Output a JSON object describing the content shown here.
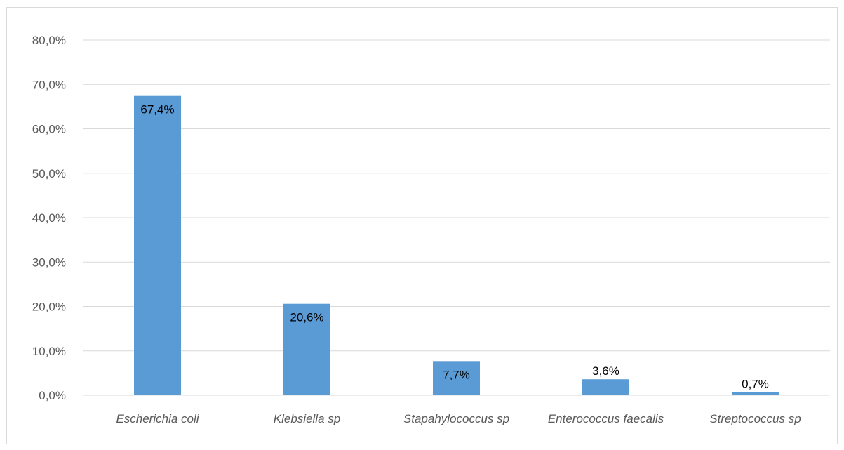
{
  "chart_data": {
    "type": "bar",
    "categories": [
      "Escherichia coli",
      "Klebsiella sp",
      "Stapahylococcus sp",
      "Enterococcus faecalis",
      "Streptococcus sp"
    ],
    "values": [
      67.4,
      20.6,
      7.7,
      3.6,
      0.7
    ],
    "data_labels": [
      "67,4%",
      "20,6%",
      "7,7%",
      "3,6%",
      "0,7%"
    ],
    "y_ticks": [
      0,
      10,
      20,
      30,
      40,
      50,
      60,
      70,
      80
    ],
    "y_tick_labels": [
      "0,0%",
      "10,0%",
      "20,0%",
      "30,0%",
      "40,0%",
      "50,0%",
      "60,0%",
      "70,0%",
      "80,0%"
    ],
    "ylim": [
      0,
      80
    ],
    "title": "",
    "xlabel": "",
    "ylabel": "",
    "grid": true,
    "legend": "none",
    "bar_color": "#5b9bd5",
    "grid_color": "#d9d9d9"
  }
}
